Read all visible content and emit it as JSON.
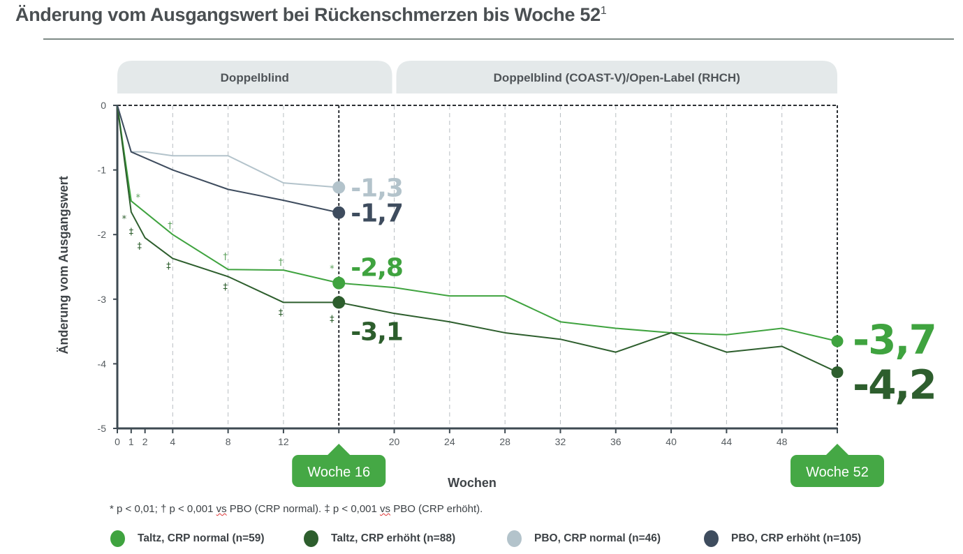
{
  "title": "Änderung vom Ausgangswert bei Rückenschmerzen bis Woche 52",
  "title_sup": "1",
  "footnote": {
    "pre": "* p < 0,01; † p < 0,001 ",
    "vs1": "vs",
    "mid": " PBO (CRP normal). ‡ p < 0,001 ",
    "vs2": "vs",
    "post": " PBO (CRP erhöht)."
  },
  "chart_data": {
    "type": "line",
    "title": "Änderung vom Ausgangswert bei Rückenschmerzen bis Woche 52",
    "xlabel": "Wochen",
    "ylabel": "Änderung vom Ausgangswert",
    "xlim": [
      0,
      52
    ],
    "ylim": [
      -5,
      0
    ],
    "x_ticks": [
      0,
      1,
      2,
      4,
      8,
      12,
      20,
      24,
      28,
      32,
      36,
      40,
      44,
      48
    ],
    "x_gridlines": [
      4,
      8,
      12,
      16,
      20,
      24,
      28,
      32,
      36,
      40,
      44,
      48,
      52
    ],
    "y_ticks": [
      0,
      -1,
      -2,
      -3,
      -4,
      -5
    ],
    "grid": "vertical dashed",
    "legend_position": "bottom",
    "phases": [
      {
        "label": "Doppelblind",
        "from": 0,
        "to": 20
      },
      {
        "label": "Doppelblind (COAST-V)/Open-Label (RHCH)",
        "from": 20,
        "to": 52
      }
    ],
    "callouts": [
      {
        "label": "Woche 16",
        "x": 16
      },
      {
        "label": "Woche 52",
        "x": 52
      }
    ],
    "series": [
      {
        "name": "Taltz, CRP normal (n=59)",
        "color": "#3fa33f",
        "x": [
          0,
          1,
          4,
          8,
          12,
          16,
          20,
          24,
          28,
          32,
          36,
          40,
          44,
          48,
          52
        ],
        "values": [
          0,
          -1.48,
          -2.0,
          -2.54,
          -2.55,
          -2.75,
          -2.82,
          -2.95,
          -2.95,
          -3.35,
          -3.45,
          -3.52,
          -3.55,
          -3.45,
          -3.65
        ],
        "end_labels": [
          {
            "x": 16,
            "text": "-2,8"
          },
          {
            "x": 52,
            "text": "-3,7"
          }
        ]
      },
      {
        "name": "Taltz, CRP erhöht (n=88)",
        "color": "#2d5e2d",
        "x": [
          0,
          1,
          2,
          4,
          8,
          12,
          16,
          20,
          24,
          28,
          32,
          36,
          40,
          44,
          48,
          52
        ],
        "values": [
          0,
          -1.65,
          -2.05,
          -2.37,
          -2.65,
          -3.05,
          -3.05,
          -3.22,
          -3.35,
          -3.52,
          -3.62,
          -3.82,
          -3.52,
          -3.82,
          -3.73,
          -4.13
        ],
        "end_labels": [
          {
            "x": 16,
            "text": "-3,1"
          },
          {
            "x": 52,
            "text": "-4,2"
          }
        ]
      },
      {
        "name": "PBO, CRP normal (n=46)",
        "color": "#b3c3cb",
        "x": [
          0,
          1,
          2,
          4,
          8,
          12,
          16
        ],
        "values": [
          0,
          -0.72,
          -0.72,
          -0.78,
          -0.78,
          -1.2,
          -1.27
        ],
        "end_labels": [
          {
            "x": 16,
            "text": "-1,3"
          }
        ]
      },
      {
        "name": "PBO, CRP erhöht (n=105)",
        "color": "#3e4c5e",
        "x": [
          0,
          1,
          4,
          8,
          12,
          16
        ],
        "values": [
          0,
          -0.72,
          -1.0,
          -1.3,
          -1.47,
          -1.66
        ],
        "end_labels": [
          {
            "x": 16,
            "text": "-1,7"
          }
        ]
      }
    ],
    "significance_markers": [
      {
        "x": 1.5,
        "y": -1.42,
        "symbol": "*",
        "series": "Taltz, CRP normal (n=59)"
      },
      {
        "x": 0.5,
        "y": -1.75,
        "symbol": "*",
        "series": "Taltz, CRP erhöht (n=88)"
      },
      {
        "x": 1,
        "y": -1.95,
        "symbol": "‡",
        "series": "Taltz, CRP erhöht (n=88)"
      },
      {
        "x": 1.6,
        "y": -2.17,
        "symbol": "‡",
        "series": "Taltz, CRP erhöht (n=88)"
      },
      {
        "x": 3.8,
        "y": -1.85,
        "symbol": "†",
        "series": "Taltz, CRP normal (n=59)"
      },
      {
        "x": 3.7,
        "y": -2.48,
        "symbol": "‡",
        "series": "Taltz, CRP erhöht (n=88)"
      },
      {
        "x": 7.8,
        "y": -2.33,
        "symbol": "†",
        "series": "Taltz, CRP normal (n=59)"
      },
      {
        "x": 7.8,
        "y": -2.8,
        "symbol": "‡",
        "series": "Taltz, CRP erhöht (n=88)"
      },
      {
        "x": 11.8,
        "y": -2.42,
        "symbol": "†",
        "series": "Taltz, CRP normal (n=59)"
      },
      {
        "x": 11.8,
        "y": -3.2,
        "symbol": "‡",
        "series": "Taltz, CRP erhöht (n=88)"
      },
      {
        "x": 15.5,
        "y": -2.52,
        "symbol": "*",
        "series": "Taltz, CRP normal (n=59)"
      },
      {
        "x": 15.5,
        "y": -3.3,
        "symbol": "‡",
        "series": "Taltz, CRP erhöht (n=88)"
      }
    ]
  }
}
